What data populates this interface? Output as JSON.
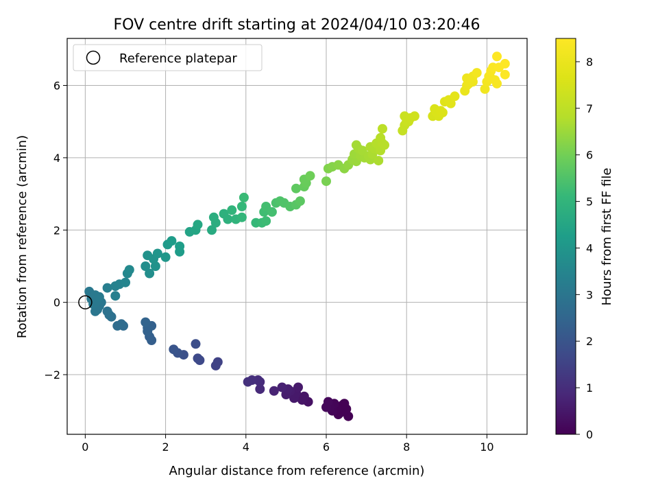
{
  "chart_data": {
    "type": "scatter",
    "title": "FOV centre drift starting at 2024/04/10 03:20:46",
    "xlabel": "Angular distance from reference (arcmin)",
    "ylabel": "Rotation from reference (arcmin)",
    "xlim": [
      -0.45,
      11.0
    ],
    "ylim": [
      -3.65,
      7.3
    ],
    "x_ticks": [
      0,
      2,
      4,
      6,
      8,
      10
    ],
    "y_ticks": [
      -2,
      0,
      2,
      4,
      6
    ],
    "grid": true,
    "legend": {
      "placement": "top-left",
      "entries": [
        "Reference platepar"
      ]
    },
    "reference_point": {
      "x": 0,
      "y": 0
    },
    "colorbar": {
      "label": "Hours from first FF file",
      "colormap": "viridis",
      "range": [
        0,
        8.5
      ],
      "ticks": [
        0,
        1,
        2,
        3,
        4,
        5,
        6,
        7,
        8
      ]
    },
    "series": [
      {
        "points": [
          [
            6.55,
            -3.15
          ],
          [
            6.3,
            -3.1
          ],
          [
            6.45,
            -3.0
          ],
          [
            6.25,
            -2.95
          ],
          [
            6.1,
            -2.9
          ],
          [
            6.4,
            -2.85
          ],
          [
            6.5,
            -2.95
          ],
          [
            6.2,
            -2.8
          ],
          [
            6.05,
            -2.75
          ],
          [
            6.35,
            -3.05
          ],
          [
            6.15,
            -3.0
          ],
          [
            6.0,
            -2.9
          ],
          [
            6.45,
            -2.8
          ],
          [
            6.3,
            -2.95
          ],
          [
            5.55,
            -2.75
          ],
          [
            5.4,
            -2.7
          ],
          [
            5.2,
            -2.65
          ],
          [
            5.0,
            -2.55
          ],
          [
            5.25,
            -2.5
          ],
          [
            5.45,
            -2.6
          ],
          [
            4.9,
            -2.35
          ],
          [
            5.1,
            -2.45
          ],
          [
            4.7,
            -2.45
          ],
          [
            5.3,
            -2.35
          ],
          [
            5.05,
            -2.4
          ],
          [
            4.35,
            -2.2
          ],
          [
            4.15,
            -2.15
          ],
          [
            4.05,
            -2.2
          ],
          [
            4.3,
            -2.15
          ],
          [
            4.35,
            -2.4
          ],
          [
            3.3,
            -1.65
          ],
          [
            3.25,
            -1.75
          ],
          [
            2.85,
            -1.6
          ],
          [
            2.8,
            -1.55
          ],
          [
            2.75,
            -1.15
          ],
          [
            2.45,
            -1.45
          ],
          [
            2.3,
            -1.4
          ],
          [
            2.2,
            -1.3
          ],
          [
            1.65,
            -1.05
          ],
          [
            1.6,
            -0.95
          ],
          [
            1.55,
            -0.8
          ],
          [
            1.5,
            -0.55
          ],
          [
            1.65,
            -0.65
          ],
          [
            1.55,
            -0.7
          ],
          [
            0.95,
            -0.65
          ],
          [
            0.9,
            -0.6
          ],
          [
            0.8,
            -0.65
          ],
          [
            0.65,
            -0.4
          ],
          [
            0.6,
            -0.35
          ],
          [
            0.55,
            -0.25
          ],
          [
            0.3,
            0.05
          ],
          [
            0.2,
            -0.05
          ],
          [
            0.25,
            -0.25
          ],
          [
            0.35,
            -0.1
          ],
          [
            0.4,
            0.0
          ],
          [
            0.15,
            0.1
          ],
          [
            0.25,
            0.2
          ],
          [
            0.1,
            0.3
          ],
          [
            0.35,
            0.15
          ],
          [
            0.3,
            -0.2
          ],
          [
            0.2,
            0.15
          ],
          [
            0.55,
            0.4
          ],
          [
            0.75,
            0.45
          ],
          [
            0.75,
            0.18
          ],
          [
            0.85,
            0.5
          ],
          [
            1.0,
            0.55
          ],
          [
            1.05,
            0.8
          ],
          [
            1.1,
            0.9
          ],
          [
            1.5,
            1.0
          ],
          [
            1.6,
            0.8
          ],
          [
            1.55,
            1.3
          ],
          [
            1.7,
            1.2
          ],
          [
            1.75,
            1.0
          ],
          [
            1.8,
            1.35
          ],
          [
            2.0,
            1.25
          ],
          [
            2.05,
            1.6
          ],
          [
            2.15,
            1.7
          ],
          [
            2.35,
            1.55
          ],
          [
            2.35,
            1.4
          ],
          [
            2.6,
            1.95
          ],
          [
            2.75,
            2.0
          ],
          [
            2.8,
            2.15
          ],
          [
            3.15,
            2.0
          ],
          [
            3.2,
            2.35
          ],
          [
            3.25,
            2.2
          ],
          [
            3.45,
            2.45
          ],
          [
            3.55,
            2.3
          ],
          [
            3.65,
            2.55
          ],
          [
            3.75,
            2.3
          ],
          [
            3.9,
            2.65
          ],
          [
            3.95,
            2.9
          ],
          [
            3.9,
            2.35
          ],
          [
            4.25,
            2.2
          ],
          [
            4.4,
            2.2
          ],
          [
            4.5,
            2.25
          ],
          [
            4.45,
            2.5
          ],
          [
            4.5,
            2.65
          ],
          [
            4.65,
            2.5
          ],
          [
            4.75,
            2.75
          ],
          [
            4.85,
            2.8
          ],
          [
            4.95,
            2.75
          ],
          [
            5.1,
            2.65
          ],
          [
            5.25,
            2.7
          ],
          [
            5.35,
            2.8
          ],
          [
            5.25,
            3.15
          ],
          [
            5.5,
            3.3
          ],
          [
            5.45,
            3.2
          ],
          [
            5.6,
            3.5
          ],
          [
            5.45,
            3.4
          ],
          [
            6.0,
            3.35
          ],
          [
            6.05,
            3.7
          ],
          [
            6.15,
            3.75
          ],
          [
            6.3,
            3.8
          ],
          [
            6.45,
            3.7
          ],
          [
            6.55,
            3.8
          ],
          [
            6.65,
            3.95
          ],
          [
            6.75,
            3.9
          ],
          [
            6.7,
            4.1
          ],
          [
            6.8,
            4.25
          ],
          [
            6.75,
            4.35
          ],
          [
            6.9,
            4.2
          ],
          [
            6.95,
            4.0
          ],
          [
            7.05,
            4.05
          ],
          [
            7.15,
            4.1
          ],
          [
            7.1,
            4.3
          ],
          [
            7.25,
            4.4
          ],
          [
            7.2,
            4.25
          ],
          [
            7.35,
            4.2
          ],
          [
            7.4,
            4.4
          ],
          [
            7.35,
            4.55
          ],
          [
            7.45,
            4.35
          ],
          [
            7.3,
            3.92
          ],
          [
            7.4,
            4.8
          ],
          [
            7.1,
            3.95
          ],
          [
            6.85,
            4.05
          ],
          [
            7.9,
            4.75
          ],
          [
            7.95,
            4.9
          ],
          [
            8.0,
            5.0
          ],
          [
            8.05,
            5.0
          ],
          [
            8.1,
            5.1
          ],
          [
            7.95,
            5.15
          ],
          [
            8.2,
            5.15
          ],
          [
            8.65,
            5.15
          ],
          [
            8.8,
            5.15
          ],
          [
            8.7,
            5.35
          ],
          [
            8.85,
            5.3
          ],
          [
            8.9,
            5.25
          ],
          [
            8.95,
            5.55
          ],
          [
            9.1,
            5.5
          ],
          [
            9.2,
            5.7
          ],
          [
            9.05,
            5.6
          ],
          [
            8.75,
            5.25
          ],
          [
            9.45,
            5.85
          ],
          [
            9.5,
            6.0
          ],
          [
            9.55,
            6.1
          ],
          [
            9.6,
            6.2
          ],
          [
            9.65,
            6.1
          ],
          [
            9.75,
            6.35
          ],
          [
            9.65,
            6.25
          ],
          [
            9.5,
            6.2
          ],
          [
            9.95,
            5.9
          ],
          [
            10.0,
            6.1
          ],
          [
            10.05,
            6.25
          ],
          [
            10.1,
            6.4
          ],
          [
            10.2,
            6.15
          ],
          [
            10.25,
            6.05
          ],
          [
            10.3,
            6.5
          ],
          [
            10.45,
            6.3
          ],
          [
            10.45,
            6.6
          ],
          [
            10.25,
            6.8
          ],
          [
            10.15,
            6.5
          ],
          [
            10.1,
            6.2
          ],
          [
            9.55,
            6.05
          ]
        ]
      }
    ]
  }
}
